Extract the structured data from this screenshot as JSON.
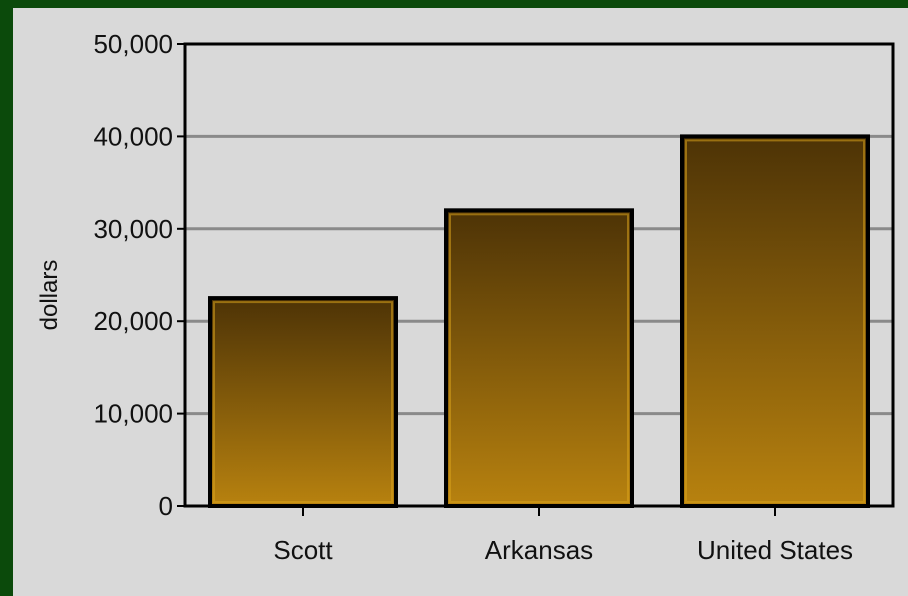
{
  "chart_data": {
    "type": "bar",
    "title": "",
    "xlabel": "",
    "ylabel": "dollars",
    "categories": [
      "Scott",
      "Arkansas",
      "United States"
    ],
    "values": [
      22500,
      32000,
      40000
    ],
    "ylim": [
      0,
      50000
    ],
    "yticks": [
      0,
      10000,
      20000,
      30000,
      40000,
      50000
    ],
    "ytick_labels": [
      "0",
      "10,000",
      "20,000",
      "30,000",
      "40,000",
      "50,000"
    ],
    "grid": true,
    "legend": "none",
    "colors": {
      "background": "#d9d9d9",
      "border": "#0b4a0b",
      "bar_top": "#4d3306",
      "bar_bottom": "#b8820f",
      "bar_outline": "#000000",
      "gridline": "#8a8a8a"
    }
  }
}
